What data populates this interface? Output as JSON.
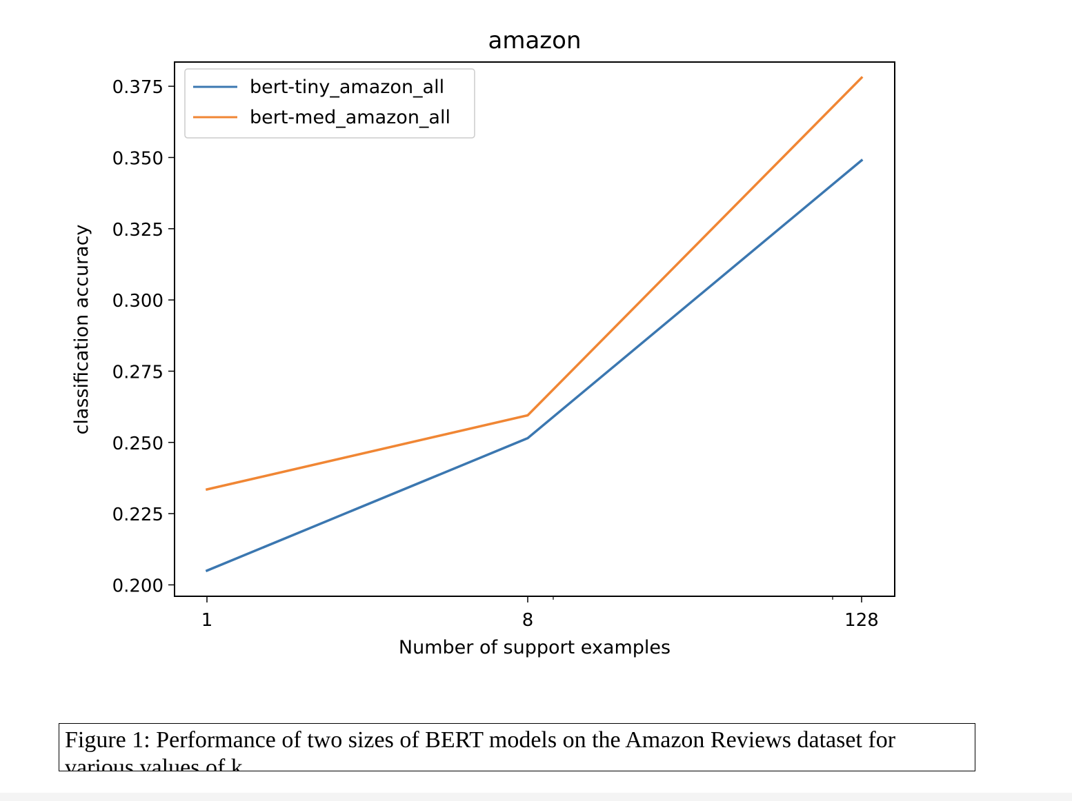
{
  "chart_data": {
    "type": "line",
    "title": "amazon",
    "xlabel": "Number of support examples",
    "ylabel": "classification accuracy",
    "x_scale": "log",
    "x": [
      1,
      8,
      128
    ],
    "x_ticks": [
      "1",
      "8",
      "128"
    ],
    "ylim": [
      0.196,
      0.3835
    ],
    "y_ticks": [
      0.2,
      0.225,
      0.25,
      0.275,
      0.3,
      0.325,
      0.35,
      0.375
    ],
    "y_tick_labels": [
      "0.200",
      "0.225",
      "0.250",
      "0.275",
      "0.300",
      "0.325",
      "0.350",
      "0.375"
    ],
    "grid": false,
    "legend_position": "upper-left",
    "series": [
      {
        "name": "bert-tiny_amazon_all",
        "color": "#3b77b0",
        "values": [
          0.205,
          0.2515,
          0.349
        ]
      },
      {
        "name": "bert-med_amazon_all",
        "color": "#f08634",
        "values": [
          0.2335,
          0.2595,
          0.378
        ]
      }
    ]
  },
  "caption": {
    "line1": "Figure 1: Performance of two sizes of BERT models on the Amazon Reviews dataset for",
    "line2": "various values of k"
  }
}
